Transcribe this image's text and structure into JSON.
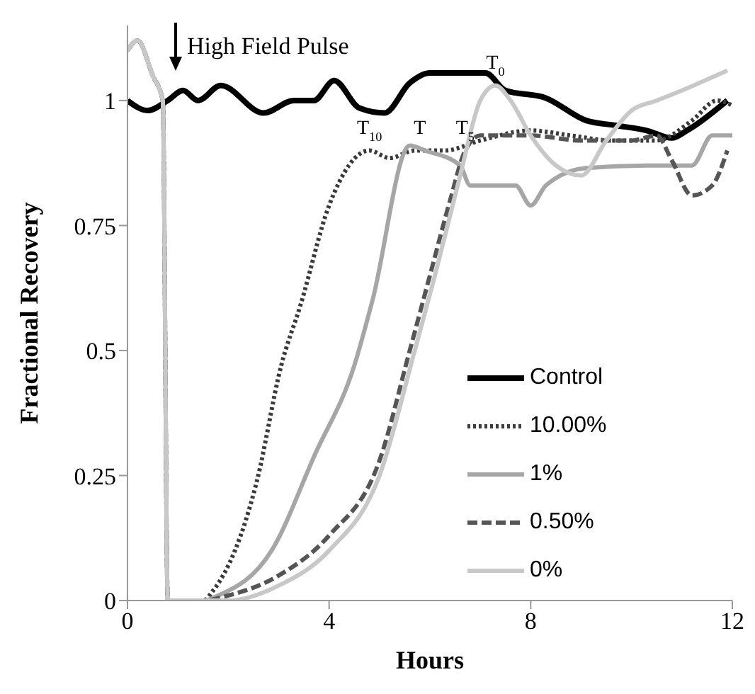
{
  "chart_data": {
    "type": "line",
    "xlabel": "Hours",
    "ylabel": "Fractional Recovery",
    "xlim": [
      0,
      12
    ],
    "xticks": [
      0,
      4,
      8,
      12
    ],
    "ylim": [
      0,
      1.15
    ],
    "yticks": [
      0,
      0.25,
      0.5,
      0.75,
      1
    ],
    "grid": false,
    "legend": "bottom right",
    "marker": "none",
    "annotations": [
      "High Field Pulse",
      {
        "text": "T$_{10}$",
        "x": 4.8,
        "y": 0.9
      },
      {
        "text": "T",
        "x": 5.8,
        "y": 0.9
      },
      {
        "text": "T$_{5}$",
        "x": 6.7,
        "y": 0.9
      },
      {
        "text": "T$_{0}$",
        "x": 7.3,
        "y": 1.03
      }
    ],
    "series": [
      {
        "name": "Control",
        "color": "#000000",
        "line_style": "solid",
        "x": [
          0,
          0.4,
          0.8,
          1.1,
          1.4,
          1.85,
          2.7,
          3.3,
          3.7,
          4.1,
          4.6,
          5.1,
          5.6,
          6,
          7.1,
          7.5,
          8.3,
          9.1,
          9.7,
          10.3,
          10.8,
          11.1,
          11.9
        ],
        "values": [
          1,
          0.98,
          1,
          1.02,
          1,
          1.03,
          0.975,
          1,
          1,
          1.04,
          0.985,
          0.975,
          1.035,
          1.055,
          1.055,
          1.02,
          1.005,
          0.96,
          0.95,
          0.94,
          0.925,
          0.94,
          1
        ]
      },
      {
        "name": "10.00%",
        "color": "#3a3a3a",
        "line_style": "dotted",
        "x": [
          0,
          0.2,
          0.5,
          0.7,
          0.8,
          1.5,
          1.7,
          2.57,
          3.05,
          3.43,
          4,
          4.8,
          5.2,
          5.7,
          6.3,
          7,
          8,
          8.8,
          9.6,
          10.5,
          11.2,
          11.7,
          12
        ],
        "values": [
          1.1,
          1.12,
          1.05,
          1,
          0,
          0,
          0.02,
          0.24,
          0.47,
          0.59,
          0.79,
          0.9,
          0.885,
          0.9,
          0.9,
          0.92,
          0.94,
          0.93,
          0.92,
          0.92,
          0.96,
          1,
          0.99
        ]
      },
      {
        "name": "1%",
        "color": "#a6a6a6",
        "line_style": "solid",
        "x": [
          0,
          0.2,
          0.5,
          0.7,
          0.8,
          1.5,
          1.8,
          2.86,
          3.71,
          4.5,
          4.86,
          5.6,
          5.9,
          6.6,
          6.8,
          7.3,
          7.7,
          8,
          8.3,
          9.1,
          10.3,
          11.2,
          11.6,
          12
        ],
        "values": [
          1.1,
          1.12,
          1.05,
          1,
          0,
          0,
          0.01,
          0.1,
          0.29,
          0.47,
          0.6,
          0.91,
          0.9,
          0.87,
          0.83,
          0.83,
          0.83,
          0.79,
          0.83,
          0.865,
          0.87,
          0.87,
          0.93,
          0.93
        ]
      },
      {
        "name": "0.50%",
        "color": "#555555",
        "line_style": "dashed",
        "x": [
          0,
          0.2,
          0.5,
          0.7,
          0.8,
          1.5,
          2,
          3,
          4,
          5,
          5.6,
          6,
          6.4,
          6.7,
          7,
          8,
          9,
          10,
          10.5,
          10.8,
          11.2,
          11.6,
          11.9
        ],
        "values": [
          1.1,
          1.12,
          1.05,
          1,
          0,
          0,
          0.01,
          0.05,
          0.13,
          0.28,
          0.5,
          0.65,
          0.8,
          0.9,
          0.93,
          0.93,
          0.92,
          0.92,
          0.93,
          0.88,
          0.81,
          0.83,
          0.9
        ]
      },
      {
        "name": "0%",
        "color": "#c8c8c8",
        "line_style": "solid",
        "x": [
          0,
          0.2,
          0.5,
          0.7,
          0.8,
          1.5,
          2,
          3,
          4,
          5,
          5.7,
          6.1,
          6.6,
          7,
          7.3,
          7.6,
          8,
          8.5,
          9,
          9.5,
          10,
          10.5,
          11,
          11.9
        ],
        "values": [
          1.1,
          1.12,
          1.05,
          1,
          0,
          0,
          0,
          0.03,
          0.1,
          0.25,
          0.5,
          0.65,
          0.85,
          1,
          1.03,
          1,
          0.93,
          0.87,
          0.85,
          0.92,
          0.98,
          1,
          1.02,
          1.06
        ]
      }
    ]
  }
}
